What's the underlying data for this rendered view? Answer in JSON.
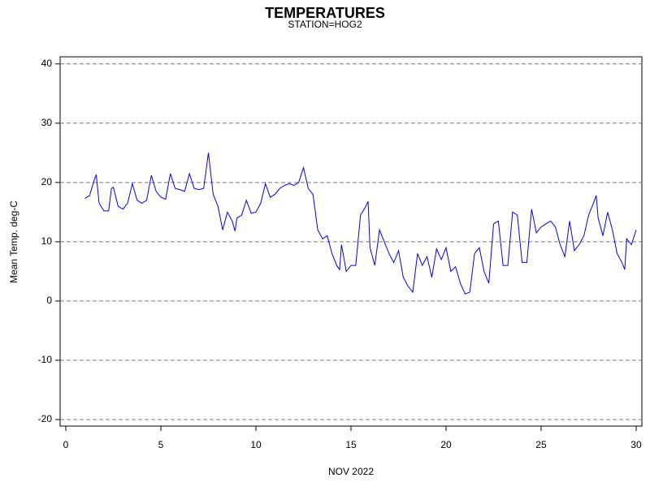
{
  "chart_data": {
    "type": "line",
    "title": "TEMPERATURES",
    "subtitle": "STATION=HOG2",
    "x_label": "NOV 2022",
    "y_label": "Mean Temp. deg-C",
    "x": [
      1.0,
      1.25,
      1.5,
      1.6,
      1.75,
      2.0,
      2.25,
      2.4,
      2.5,
      2.75,
      3.0,
      3.25,
      3.5,
      3.75,
      4.0,
      4.25,
      4.5,
      4.75,
      5.0,
      5.25,
      5.5,
      5.75,
      6.0,
      6.25,
      6.5,
      6.75,
      7.0,
      7.25,
      7.5,
      7.75,
      8.0,
      8.25,
      8.5,
      8.75,
      8.9,
      9.0,
      9.25,
      9.5,
      9.75,
      10.0,
      10.25,
      10.5,
      10.75,
      11.0,
      11.25,
      11.5,
      11.75,
      12.0,
      12.25,
      12.5,
      12.75,
      13.0,
      13.25,
      13.5,
      13.75,
      14.0,
      14.25,
      14.4,
      14.5,
      14.75,
      15.0,
      15.25,
      15.5,
      15.75,
      15.9,
      16.0,
      16.25,
      16.5,
      16.75,
      17.0,
      17.25,
      17.5,
      17.75,
      18.0,
      18.25,
      18.5,
      18.75,
      19.0,
      19.25,
      19.5,
      19.75,
      20.0,
      20.25,
      20.5,
      20.75,
      21.0,
      21.25,
      21.5,
      21.75,
      22.0,
      22.25,
      22.5,
      22.75,
      23.0,
      23.25,
      23.5,
      23.75,
      24.0,
      24.25,
      24.5,
      24.75,
      25.0,
      25.25,
      25.5,
      25.75,
      26.0,
      26.25,
      26.5,
      26.75,
      27.0,
      27.25,
      27.5,
      27.75,
      27.9,
      28.0,
      28.25,
      28.5,
      28.75,
      29.0,
      29.25,
      29.4,
      29.5,
      29.75,
      30.0
    ],
    "series": [
      {
        "name": "Mean Temp",
        "color": "#0000ee",
        "values": [
          17.3,
          17.8,
          20.5,
          21.3,
          16.5,
          15.2,
          15.2,
          19,
          19.2,
          16,
          15.5,
          16.5,
          19.8,
          17,
          16.5,
          17,
          21.2,
          18.5,
          17.5,
          17.2,
          21.5,
          19,
          18.8,
          18.5,
          21.5,
          19,
          18.8,
          19,
          25,
          18,
          16,
          12,
          15,
          13.5,
          11.8,
          14,
          14.5,
          17,
          14.8,
          15,
          16.5,
          19.8,
          17.5,
          18,
          19,
          19.5,
          19.8,
          19.5,
          20,
          22.5,
          19,
          18,
          12,
          10.5,
          11,
          8,
          6,
          5.3,
          9.5,
          5,
          6,
          6,
          14.5,
          15.8,
          16.8,
          9,
          6,
          12,
          10,
          8,
          6.5,
          8.5,
          4,
          2.5,
          1.5,
          8,
          6,
          7.5,
          4,
          8.8,
          7,
          9,
          5,
          5.8,
          3,
          1.2,
          1.5,
          8,
          9,
          5,
          3,
          13,
          13.5,
          6,
          6,
          15,
          14.5,
          6.5,
          6.5,
          15.5,
          11.5,
          12.5,
          13,
          13.5,
          12.5,
          9.5,
          7.5,
          13.5,
          8.5,
          9.5,
          11,
          14.5,
          16.5,
          17.8,
          14,
          11,
          15,
          12,
          8,
          6.5,
          5.3,
          10.5,
          9.5,
          12
        ]
      }
    ],
    "xlim": [
      -0.3,
      30.3
    ],
    "ylim": [
      -21.1,
      41.2
    ],
    "xticks": [
      0,
      5,
      10,
      15,
      20,
      25,
      30
    ],
    "yticks": [
      -20,
      -10,
      0,
      10,
      20,
      30,
      40
    ],
    "grid": true
  }
}
